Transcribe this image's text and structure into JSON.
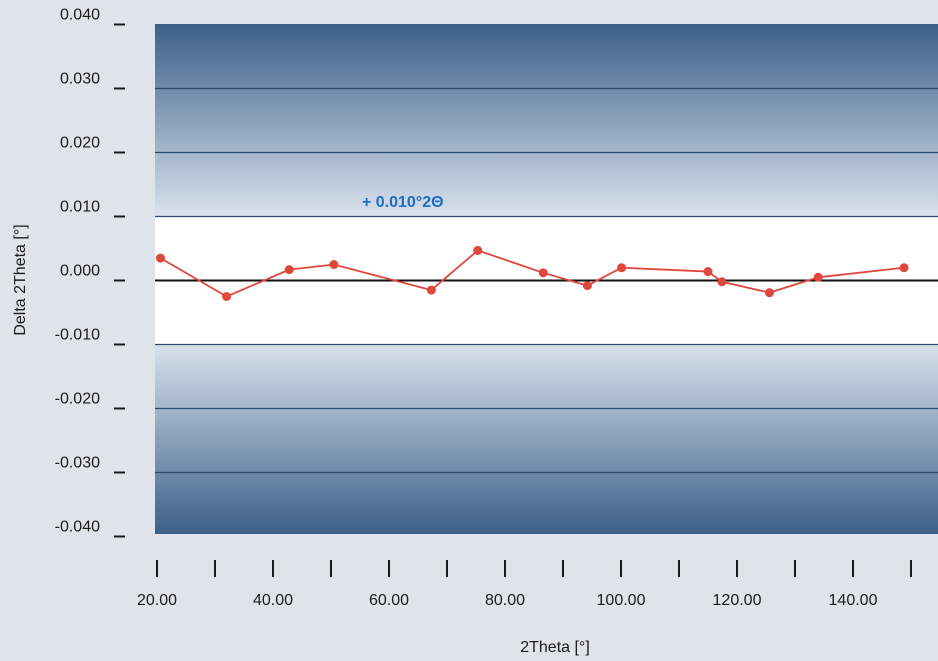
{
  "chart_data": {
    "type": "line",
    "title": "",
    "xlabel": "2Theta [°]",
    "ylabel": "Delta 2Theta [°]",
    "xlim": [
      16,
      150
    ],
    "ylim": [
      -0.04,
      0.04
    ],
    "x_ticks": [
      20,
      40,
      60,
      80,
      100,
      120,
      140
    ],
    "x_tick_labels": [
      "20.00",
      "40.00",
      "60.00",
      "80.00",
      "100.00",
      "120.00",
      "140.00"
    ],
    "y_ticks": [
      0.04,
      0.03,
      0.02,
      0.01,
      0.0,
      -0.01,
      -0.02,
      -0.03,
      -0.04
    ],
    "y_tick_labels": [
      "0.040",
      "0.030",
      "0.020",
      "0.010",
      "0.000",
      "-0.010",
      "-0.020",
      "-0.030",
      "-0.040"
    ],
    "grid": true,
    "tolerance_band": [
      -0.01,
      0.01
    ],
    "annotation": "+ 0.010°2Θ",
    "colors": {
      "series": "#e0473c",
      "annotation": "#1f6fc1",
      "band_dark": "#3b6088",
      "band_light": "#d9e1ec",
      "zero_line": "#111111",
      "grid": "#2c4a6c"
    },
    "series": [
      {
        "x": [
          20.6,
          32.0,
          42.8,
          50.5,
          67.3,
          75.3,
          86.6,
          94.2,
          100.1,
          115.0,
          117.4,
          125.6,
          134.0,
          148.8
        ],
        "y": [
          0.0035,
          -0.0025,
          0.0017,
          0.0025,
          -0.0015,
          0.0047,
          0.0012,
          -0.0008,
          0.002,
          0.0014,
          -0.0002,
          -0.0019,
          0.0005,
          0.002
        ]
      }
    ]
  }
}
